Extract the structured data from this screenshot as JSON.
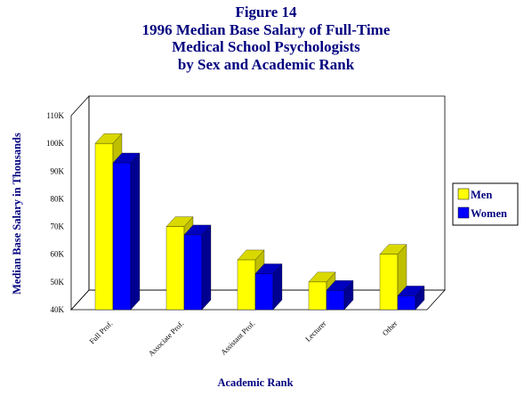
{
  "chart_data": {
    "type": "bar",
    "figure_label": "Figure 14",
    "title_lines": [
      "1996 Median Base Salary of Full-Time",
      "Medical School Psychologists",
      "by Sex and Academic Rank"
    ],
    "xlabel": "Academic Rank",
    "ylabel": "Median Base Salary in Thousands",
    "ylim": [
      40,
      110
    ],
    "yticks": [
      "40K",
      "50K",
      "60K",
      "70K",
      "80K",
      "90K",
      "100K",
      "110K"
    ],
    "categories": [
      "Full Prof.",
      "Associate Prof.",
      "Assistant Prof.",
      "Lecturer",
      "Other"
    ],
    "series": [
      {
        "name": "Men",
        "values": [
          100,
          70,
          58,
          50,
          60
        ],
        "color": "#ffff00"
      },
      {
        "name": "Women",
        "values": [
          93,
          67,
          53,
          47,
          45
        ],
        "color": "#0000ff"
      }
    ],
    "legend_position": "right",
    "grid": false,
    "style": "3d"
  }
}
